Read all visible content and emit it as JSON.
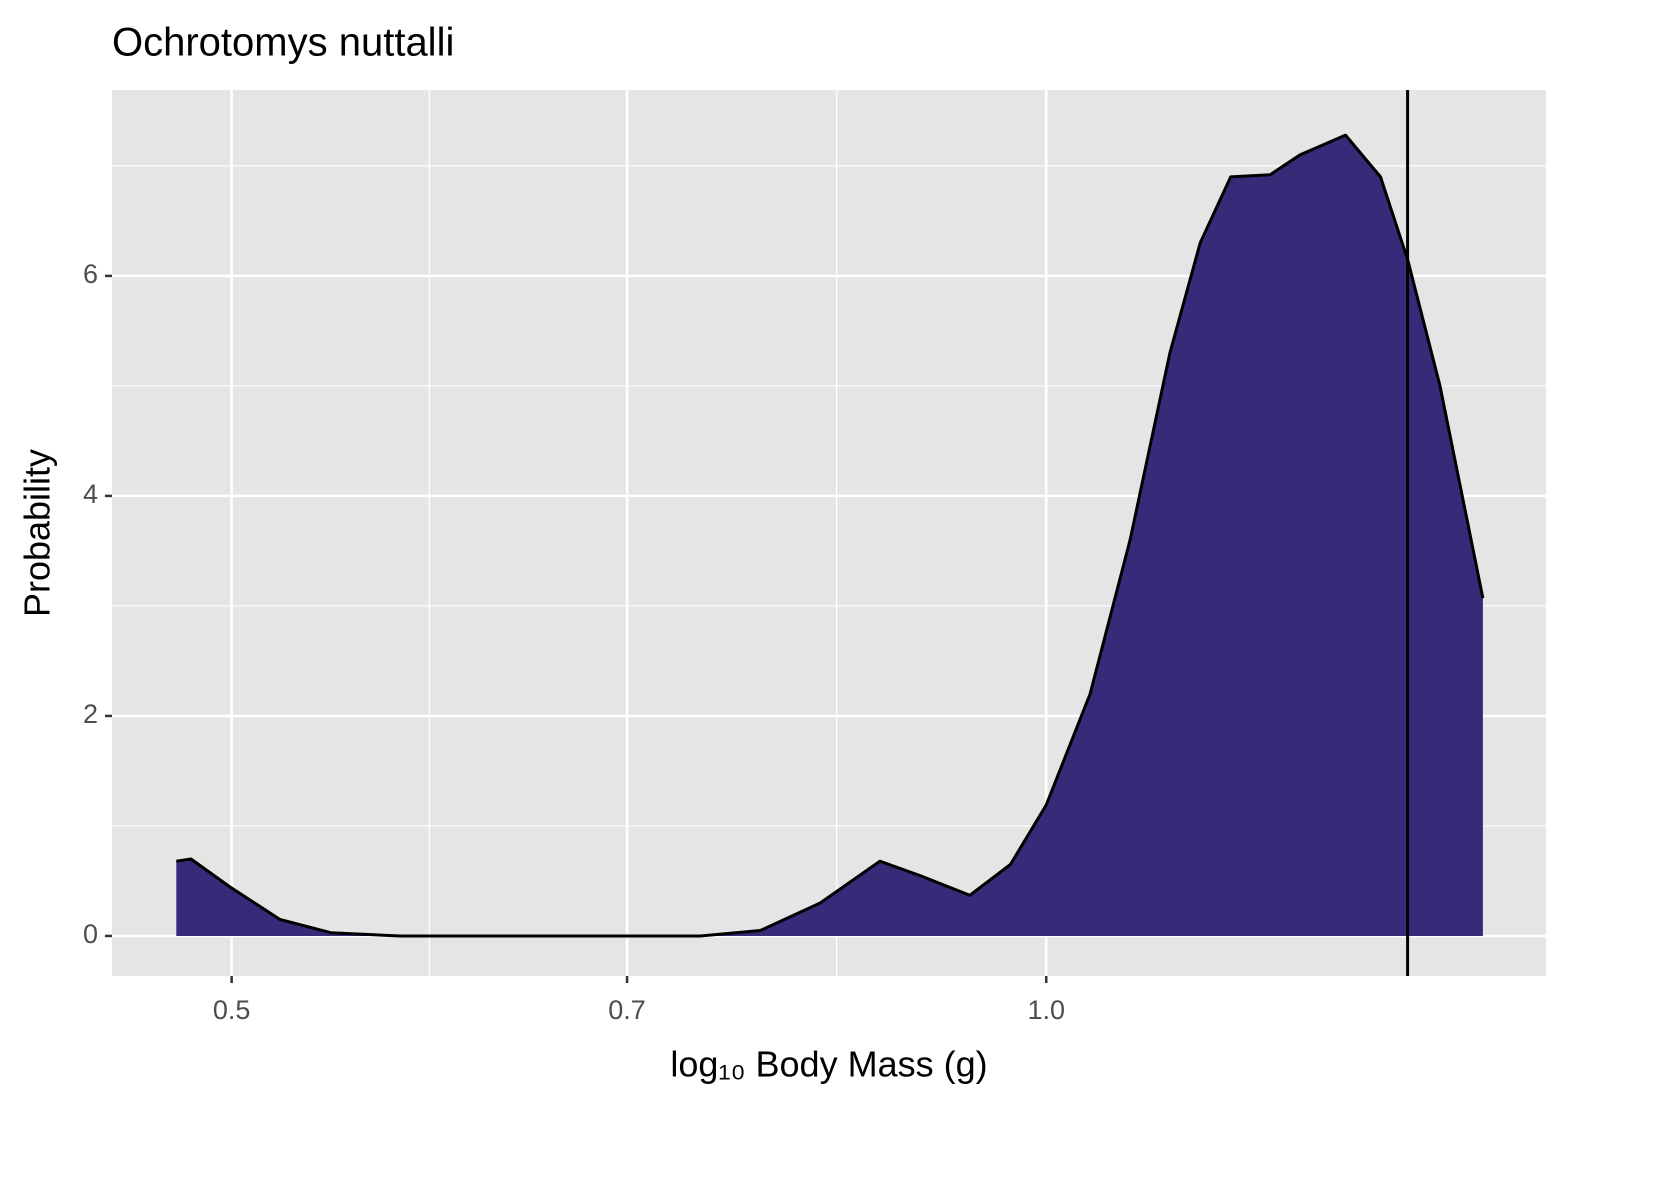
{
  "chart_data": {
    "type": "area",
    "title": "Ochrotomys nuttalli",
    "x_label": "log₁₀ Body Mass (g)",
    "y_label": "Probability",
    "x_scale": "log",
    "x": [
      0.477,
      0.483,
      0.499,
      0.521,
      0.544,
      0.577,
      0.628,
      0.684,
      0.745,
      0.784,
      0.825,
      0.868,
      0.898,
      0.937,
      0.97,
      1.0,
      1.038,
      1.074,
      1.111,
      1.14,
      1.17,
      1.21,
      1.241,
      1.29,
      1.329,
      1.36,
      1.398,
      1.45
    ],
    "values": [
      0.68,
      0.7,
      0.45,
      0.15,
      0.03,
      0,
      0,
      0,
      0,
      0.05,
      0.3,
      0.68,
      0.55,
      0.37,
      0.65,
      1.19,
      2.2,
      3.6,
      5.3,
      6.3,
      6.9,
      6.92,
      7.1,
      7.28,
      6.9,
      6.15,
      5.0,
      3.07
    ],
    "color": "#382a78",
    "vline": 1.36,
    "xlim": [
      0.4516,
      1.53
    ],
    "ylim": [
      -0.364,
      7.69
    ],
    "xticks": [
      0.5,
      0.7,
      {
        "value": 1,
        "label": "1.0"
      }
    ],
    "yticks": [
      0,
      2,
      4,
      6
    ],
    "grid": true
  }
}
